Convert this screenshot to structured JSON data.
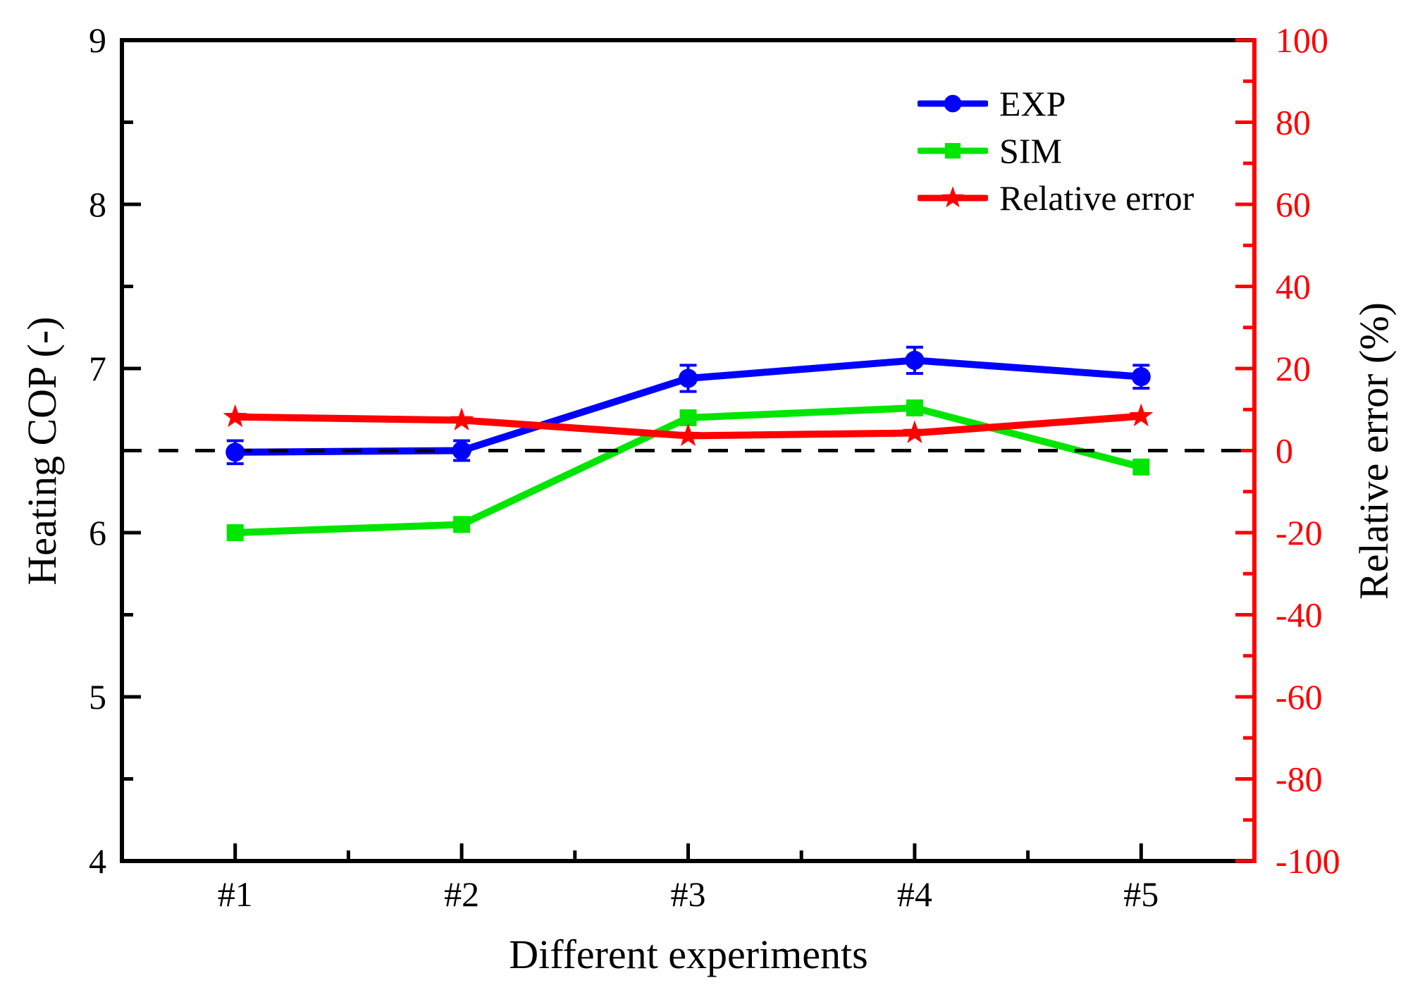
{
  "chart_data": {
    "type": "line",
    "title": "",
    "categories": [
      "#1",
      "#2",
      "#3",
      "#4",
      "#5"
    ],
    "series": [
      {
        "name": "EXP",
        "axis": "left",
        "color": "#0000ff",
        "marker": "circle",
        "values": [
          6.49,
          6.5,
          6.94,
          7.05,
          6.95
        ],
        "error_bars": [
          0.07,
          0.06,
          0.08,
          0.08,
          0.07
        ]
      },
      {
        "name": "SIM",
        "axis": "left",
        "color": "#00e600",
        "marker": "square",
        "values": [
          6.0,
          6.05,
          6.7,
          6.76,
          6.4
        ]
      },
      {
        "name": "Relative error",
        "axis": "right",
        "color": "#ff0000",
        "marker": "star",
        "values": [
          8.2,
          7.4,
          3.6,
          4.3,
          8.4
        ]
      }
    ],
    "x_axis": {
      "label": "Different experiments",
      "color": "#000000"
    },
    "left_axis": {
      "label": "Heating COP (-)",
      "min": 4,
      "max": 9,
      "major_step": 1,
      "minor_step": 0.5,
      "ticks": [
        9,
        8,
        7,
        6,
        5,
        4
      ],
      "color": "#000000"
    },
    "right_axis": {
      "label": "Relative error (%)",
      "min": -100,
      "max": 100,
      "major_step": 20,
      "minor_step": 10,
      "ticks": [
        100,
        80,
        60,
        40,
        20,
        0,
        -20,
        -40,
        -60,
        -80,
        -100
      ],
      "color": "#ff0000"
    },
    "reference_line": {
      "value_left": 6.5,
      "style": "dashed",
      "color": "#000000"
    },
    "legend_position": "top-right-inside",
    "grid": false,
    "background": "#ffffff"
  }
}
